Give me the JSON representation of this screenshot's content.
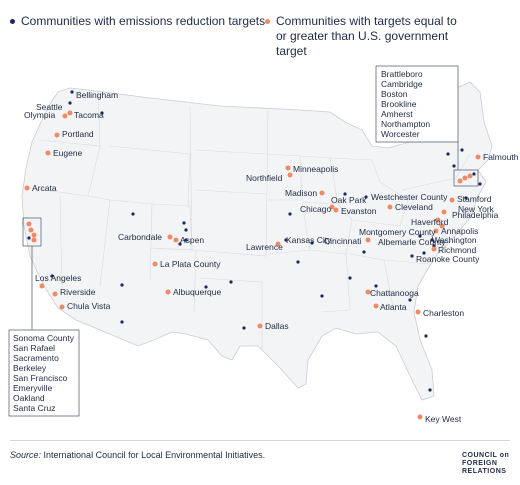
{
  "legend": {
    "navy_label": "Communities with emissions reduction targets",
    "orange_label": "Communities with targets equal to or greater than U.S. government target",
    "navy_color": "#1b2a5c",
    "orange_color": "#ee8a64"
  },
  "source": {
    "prefix": "Source:",
    "text": " International Council for Local Environmental Initiatives."
  },
  "logo": [
    "COUNCIL on",
    "FOREIGN",
    "RELATIONS"
  ],
  "northeast_box": [
    "Brattleboro",
    "Cambridge",
    "Boston",
    "Brookline",
    "Amherst",
    "Northampton",
    "Worcester"
  ],
  "bay_area_box": [
    "Sonoma County",
    "San Rafael",
    "Sacramento",
    "Berkeley",
    "San Francisco",
    "Emeryville",
    "Oakland",
    "Santa Cruz"
  ],
  "labeled_cities": [
    {
      "name": "Bellingham",
      "color": "navy"
    },
    {
      "name": "Seattle",
      "color": "navy"
    },
    {
      "name": "Olympia",
      "color": "orange"
    },
    {
      "name": "Tacoma",
      "color": "orange"
    },
    {
      "name": "Portland",
      "color": "orange"
    },
    {
      "name": "Eugene",
      "color": "orange"
    },
    {
      "name": "Arcata",
      "color": "orange"
    },
    {
      "name": "Los Angeles",
      "color": "navy"
    },
    {
      "name": "Riverside",
      "color": "orange"
    },
    {
      "name": "Chula Vista",
      "color": "orange"
    },
    {
      "name": "Carbondale",
      "color": "orange"
    },
    {
      "name": "Aspen",
      "color": "orange"
    },
    {
      "name": "La Plata County",
      "color": "orange"
    },
    {
      "name": "Albuquerque",
      "color": "orange"
    },
    {
      "name": "Dallas",
      "color": "orange"
    },
    {
      "name": "Minneapolis",
      "color": "orange"
    },
    {
      "name": "Northfield",
      "color": "orange"
    },
    {
      "name": "Madison",
      "color": "orange"
    },
    {
      "name": "Chicago",
      "color": "orange"
    },
    {
      "name": "Evanston",
      "color": "orange"
    },
    {
      "name": "Oak Park",
      "color": "navy"
    },
    {
      "name": "Kansas City",
      "color": "navy"
    },
    {
      "name": "Lawrence",
      "color": "orange"
    },
    {
      "name": "Cincinnati",
      "color": "orange"
    },
    {
      "name": "Westchester County",
      "color": "navy"
    },
    {
      "name": "Cleveland",
      "color": "orange"
    },
    {
      "name": "Stamford",
      "color": "orange"
    },
    {
      "name": "New York",
      "color": "orange"
    },
    {
      "name": "Philadelphia",
      "color": "orange"
    },
    {
      "name": "Haverford",
      "color": "navy"
    },
    {
      "name": "Annapolis",
      "color": "orange"
    },
    {
      "name": "Washington",
      "color": "orange"
    },
    {
      "name": "Montgomery County",
      "color": "navy"
    },
    {
      "name": "Albemarle County",
      "color": "navy"
    },
    {
      "name": "Richmond",
      "color": "orange"
    },
    {
      "name": "Roanoke County",
      "color": "navy"
    },
    {
      "name": "Chattanooga",
      "color": "orange"
    },
    {
      "name": "Atlanta",
      "color": "orange"
    },
    {
      "name": "Charleston",
      "color": "orange"
    },
    {
      "name": "Key West",
      "color": "orange"
    },
    {
      "name": "Falmouth",
      "color": "orange"
    }
  ]
}
